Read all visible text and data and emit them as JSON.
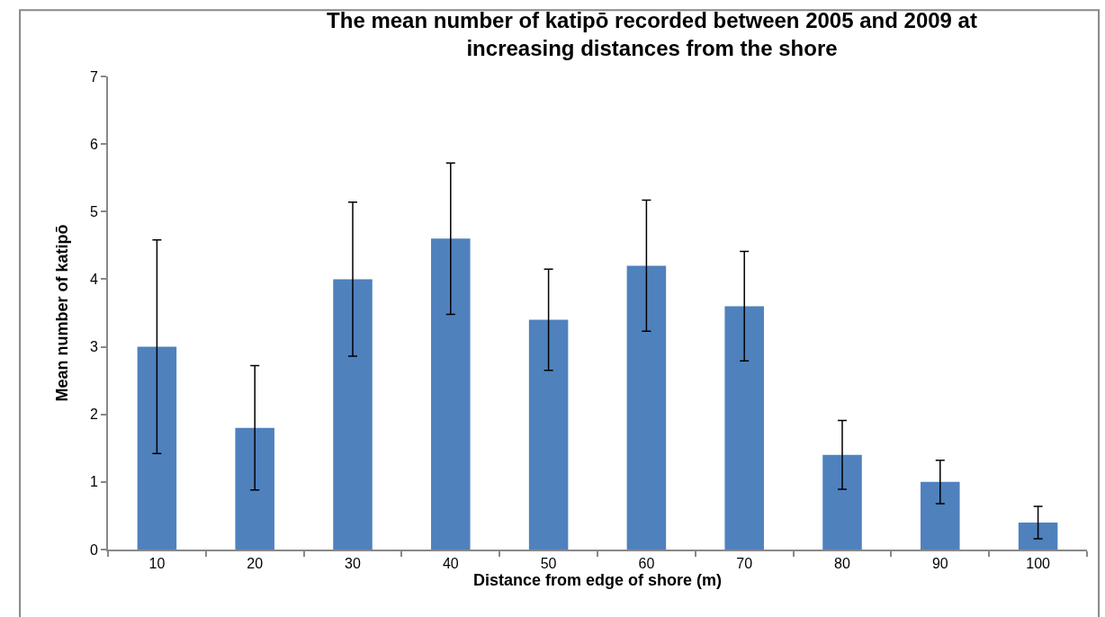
{
  "chart_data": {
    "type": "bar",
    "title": "The mean number of katipō recorded between 2005 and 2009 at increasing distances from the shore",
    "xlabel": "Distance from edge of shore (m)",
    "ylabel": "Mean number of katipō",
    "categories": [
      "10",
      "20",
      "30",
      "40",
      "50",
      "60",
      "70",
      "80",
      "90",
      "100"
    ],
    "values": [
      3,
      1.8,
      4,
      4.6,
      3.4,
      4.2,
      3.6,
      1.4,
      1,
      0.4
    ],
    "errors": [
      1.58,
      0.92,
      1.14,
      1.12,
      0.75,
      0.97,
      0.81,
      0.51,
      0.32,
      0.24
    ],
    "color": "#4f81bd",
    "ylim": [
      0,
      7
    ],
    "yticks": [
      0,
      1,
      2,
      3,
      4,
      5,
      6,
      7
    ],
    "legend": false
  }
}
